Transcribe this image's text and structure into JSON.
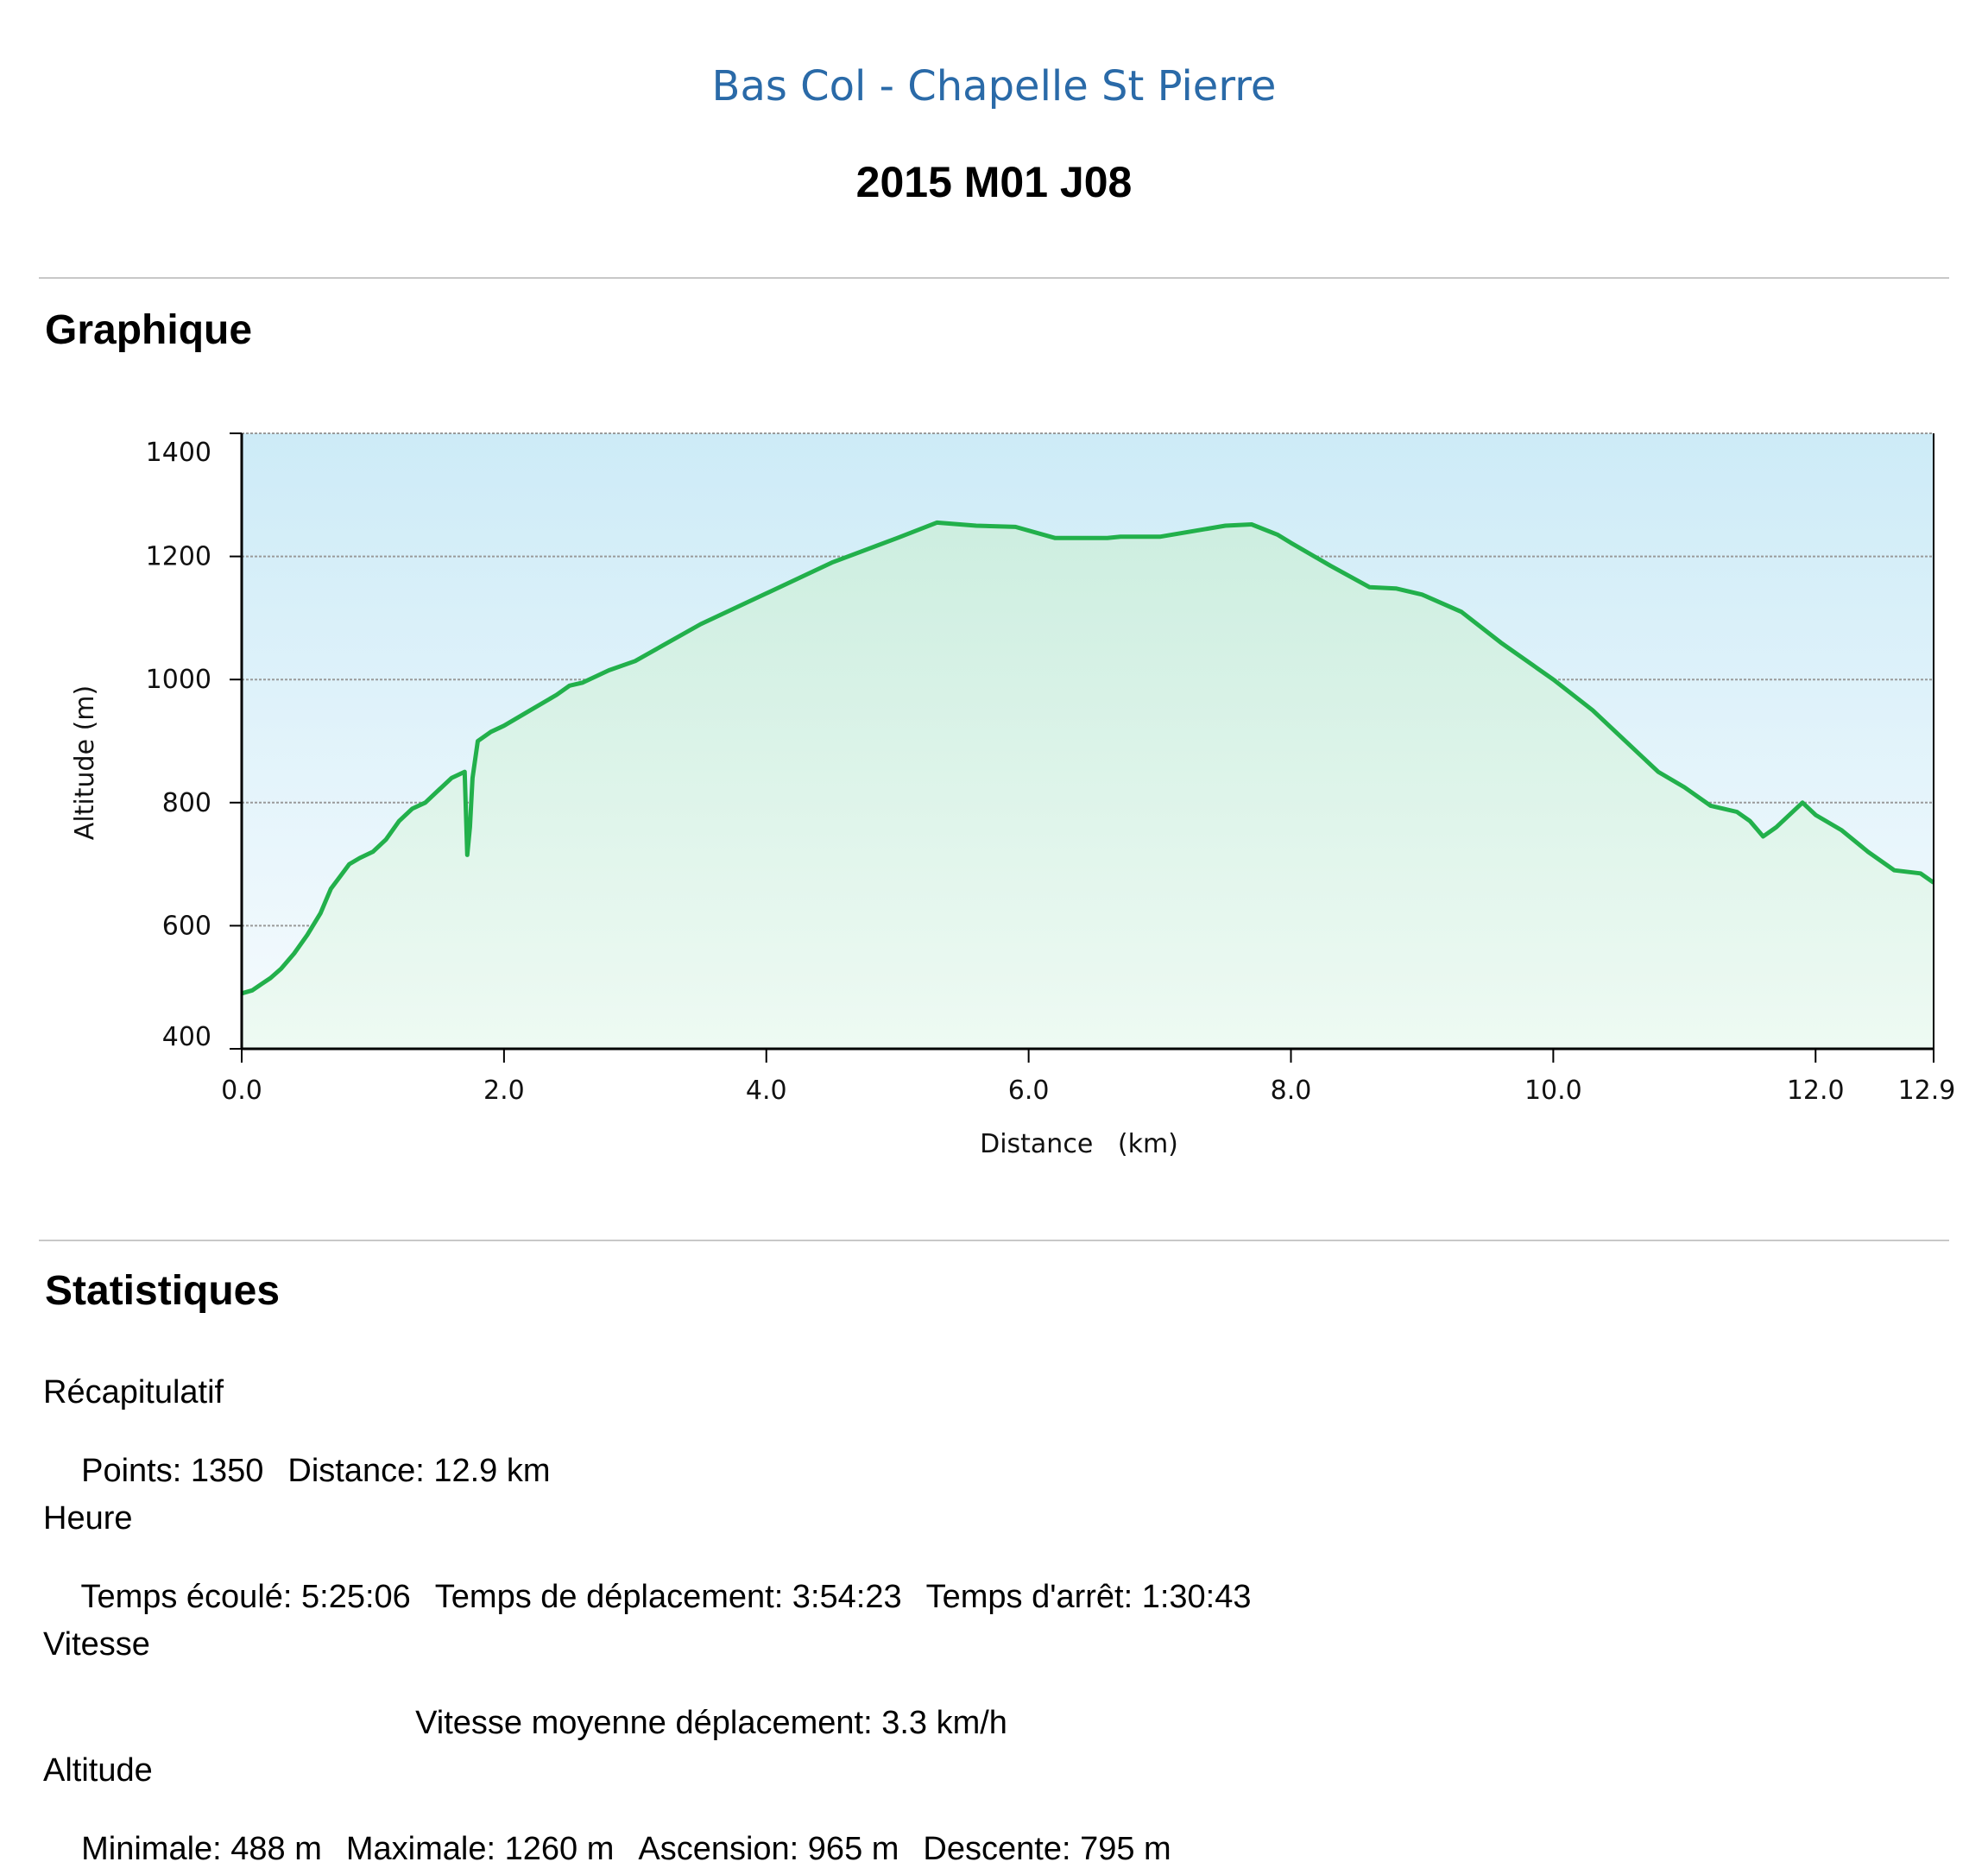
{
  "header": {
    "route_title": "Bas Col - Chapelle St Pierre",
    "date": "2015 M01 J08"
  },
  "sections": {
    "chart_heading": "Graphique",
    "stats_heading": "Statistiques"
  },
  "chart_data": {
    "type": "area",
    "title": "",
    "xlabel": "Distance   (km)",
    "ylabel": "Altitude (m)",
    "xlim": [
      0,
      12.9
    ],
    "ylim": [
      400,
      1400
    ],
    "x_ticks": [
      "0.0",
      "2.0",
      "4.0",
      "6.0",
      "8.0",
      "10.0",
      "12.0",
      "12.9"
    ],
    "x_tick_values": [
      0,
      2,
      4,
      6,
      8,
      10,
      12,
      12.9
    ],
    "y_ticks": [
      "400",
      "600",
      "800",
      "1000",
      "1200",
      "1400"
    ],
    "y_tick_values": [
      400,
      600,
      800,
      1000,
      1200,
      1400
    ],
    "grid": true,
    "colors": {
      "line": "#22b04b",
      "fill_top": "#cdebf7",
      "fill_bottom": "#f2fbf6",
      "area": "#c6f0d8"
    },
    "series": [
      {
        "x": [
          0.0,
          0.08,
          0.15,
          0.22,
          0.3,
          0.4,
          0.5,
          0.6,
          0.68,
          0.75,
          0.82,
          0.9,
          1.0,
          1.1,
          1.2,
          1.3,
          1.4,
          1.5,
          1.6,
          1.7,
          1.72,
          1.74,
          1.76,
          1.8,
          1.9,
          2.0,
          2.2,
          2.4,
          2.5,
          2.6,
          2.8,
          3.0,
          3.5,
          4.0,
          4.5,
          5.0,
          5.3,
          5.6,
          5.9,
          6.2,
          6.6,
          6.7,
          7.0,
          7.5,
          7.7,
          7.9,
          8.0,
          8.3,
          8.6,
          8.8,
          9.0,
          9.3,
          9.6,
          10.0,
          10.3,
          10.6,
          10.8,
          11.0,
          11.2,
          11.4,
          11.5,
          11.6,
          11.7,
          11.8,
          11.9,
          12.0,
          12.2,
          12.4,
          12.6,
          12.8,
          12.9
        ],
        "y": [
          490,
          495,
          505,
          515,
          530,
          555,
          585,
          620,
          660,
          680,
          700,
          710,
          720,
          740,
          770,
          790,
          800,
          820,
          840,
          850,
          715,
          760,
          840,
          900,
          915,
          925,
          950,
          975,
          990,
          995,
          1015,
          1030,
          1090,
          1140,
          1190,
          1230,
          1255,
          1250,
          1248,
          1230,
          1230,
          1232,
          1232,
          1250,
          1252,
          1235,
          1222,
          1185,
          1150,
          1148,
          1138,
          1110,
          1060,
          1000,
          950,
          890,
          850,
          825,
          795,
          785,
          770,
          745,
          760,
          780,
          800,
          780,
          755,
          720,
          690,
          685,
          670
        ]
      }
    ]
  },
  "stats": {
    "recap": {
      "title": "Récapitulatif",
      "points": "Points: 1350",
      "distance": "Distance: 12.9 km"
    },
    "time": {
      "title": "Heure",
      "elapsed": "Temps écoulé: 5:25:06",
      "moving": "Temps de déplacement: 3:54:23",
      "stopped": "Temps d'arrêt: 1:30:43"
    },
    "speed": {
      "title": "Vitesse",
      "moving_avg": "Vitesse moyenne déplacement: 3.3 km/h"
    },
    "altitude": {
      "title": "Altitude",
      "min": "Minimale: 488 m",
      "max": "Maximale: 1260 m",
      "ascent": "Ascension: 965 m",
      "descent": "Descente: 795 m"
    }
  }
}
